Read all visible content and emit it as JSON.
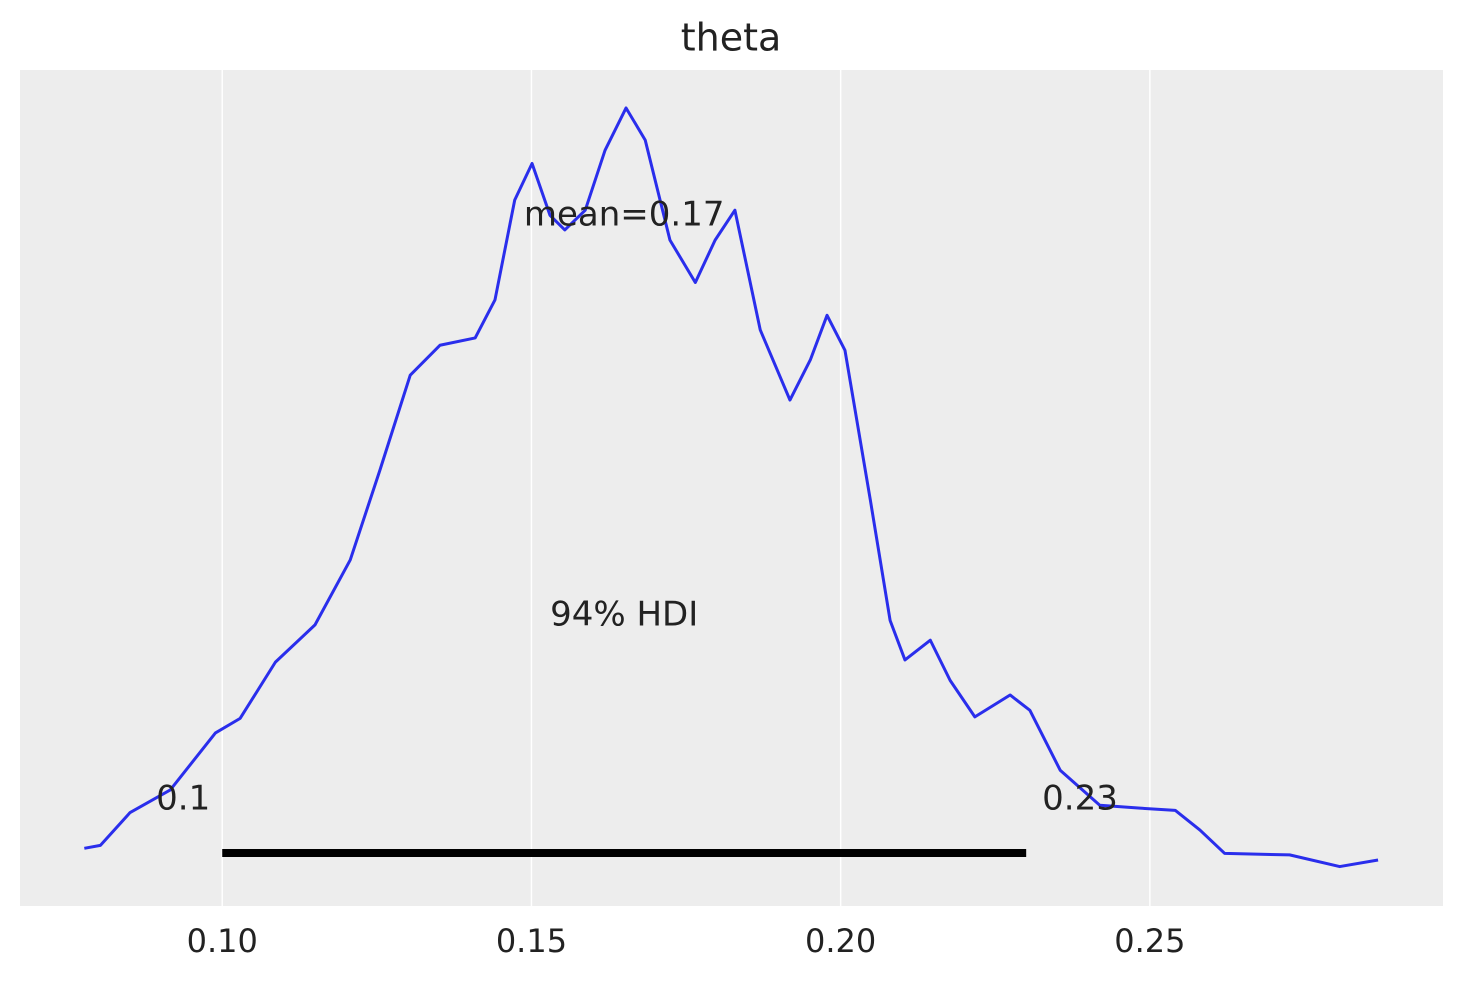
{
  "chart_data": {
    "type": "line",
    "title": "theta",
    "x": [
      0.0777,
      0.0803,
      0.0851,
      0.0916,
      0.0989,
      0.1029,
      0.1086,
      0.115,
      0.1207,
      0.1255,
      0.1304,
      0.1352,
      0.1409,
      0.1441,
      0.1473,
      0.1501,
      0.153,
      0.1554,
      0.1587,
      0.1619,
      0.1653,
      0.1684,
      0.1724,
      0.1765,
      0.1797,
      0.1829,
      0.187,
      0.1918,
      0.1951,
      0.1978,
      0.2007,
      0.2048,
      0.208,
      0.2104,
      0.2145,
      0.2177,
      0.2217,
      0.2274,
      0.2306,
      0.2355,
      0.2419,
      0.2484,
      0.2541,
      0.2581,
      0.2621,
      0.2726,
      0.2807,
      0.2869
    ],
    "series": [
      {
        "color": "#2a2eec",
        "values": [
          0.3,
          0.34,
          0.79,
          1.1,
          1.88,
          2.08,
          2.85,
          3.36,
          4.25,
          5.48,
          6.78,
          7.19,
          7.29,
          7.81,
          9.18,
          9.68,
          8.97,
          8.77,
          9.04,
          9.86,
          10.44,
          10.0,
          8.63,
          8.05,
          8.63,
          9.04,
          7.4,
          6.44,
          6.99,
          7.6,
          7.12,
          5.07,
          3.42,
          2.88,
          3.15,
          2.6,
          2.1,
          2.4,
          2.19,
          1.37,
          0.89,
          0.85,
          0.82,
          0.55,
          0.23,
          0.21,
          0.05,
          0.14
        ]
      }
    ],
    "xlim": [
      0.0673,
      0.2974
    ],
    "ylim": [
      -0.49,
      10.96
    ],
    "xticks": [
      {
        "value": 0.1,
        "label": "0.10"
      },
      {
        "value": 0.15,
        "label": "0.15"
      },
      {
        "value": 0.2,
        "label": "0.20"
      },
      {
        "value": 0.25,
        "label": "0.25"
      }
    ],
    "grid": true,
    "mean_label": "mean=0.17",
    "hdi_label": "94% HDI",
    "hdi": [
      0.1,
      0.23
    ]
  }
}
